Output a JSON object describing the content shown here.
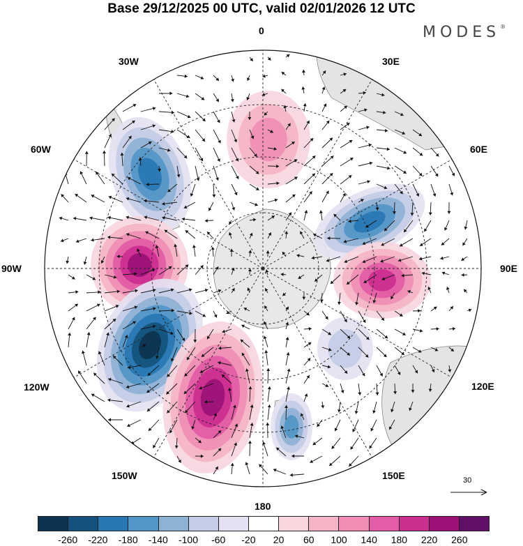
{
  "header": {
    "title": "Base 29/12/2025 00 UTC, valid 02/01/2026 12 UTC",
    "brand": "MODES",
    "brand_mark": "®"
  },
  "map": {
    "longitude_labels": {
      "top": "0",
      "top_right": "30E",
      "upper_right": "60E",
      "right": "90E",
      "lower_right": "120E",
      "bottom_right": "150E",
      "bottom": "180",
      "bottom_left": "150W",
      "lower_left": "120W",
      "left": "90W",
      "upper_left": "60W",
      "top_left": "30W"
    },
    "anomaly_centers": [
      {
        "id": "lo-60w",
        "value": -180
      },
      {
        "id": "hi-90w",
        "value": 220
      },
      {
        "id": "lo-120w",
        "value": -260
      },
      {
        "id": "hi-150w",
        "value": 220
      },
      {
        "id": "lo-170e",
        "value": -140
      },
      {
        "id": "lo-60e",
        "value": -180
      },
      {
        "id": "hi-90e",
        "value": 180
      },
      {
        "id": "hi-0",
        "value": 100
      },
      {
        "id": "lo-135e",
        "value": -60
      }
    ],
    "reference_vector": "30"
  },
  "colorbar": {
    "colors": [
      "#0d3350",
      "#14527d",
      "#2777b3",
      "#5296c8",
      "#8eb1d6",
      "#c3cde6",
      "#e4e2f2",
      "#ffffff",
      "#f8d6de",
      "#f5b5c6",
      "#ef8db4",
      "#e25ca6",
      "#cc2e90",
      "#9b1176",
      "#611068"
    ],
    "ticks": [
      "-260",
      "-220",
      "-180",
      "-140",
      "-100",
      "-60",
      "-20",
      "20",
      "60",
      "100",
      "140",
      "180",
      "220",
      "260"
    ]
  }
}
